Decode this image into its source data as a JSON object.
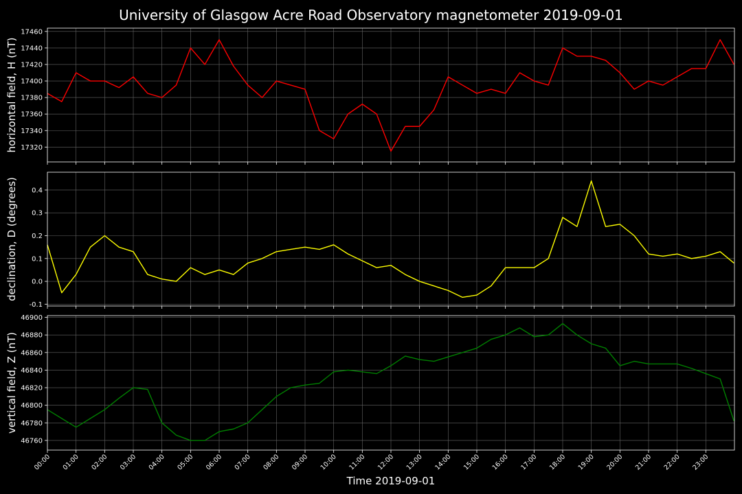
{
  "title": "University of Glasgow Acre Road Observatory magnetometer 2019-09-01",
  "chart_data": [
    {
      "type": "line",
      "ylabel": "horizontal field, H (nT)",
      "color": "#ff0000",
      "grid": true,
      "xlim": [
        "00:00",
        "24:00"
      ],
      "ylim": [
        17302,
        17464
      ],
      "yticks": [
        17320,
        17340,
        17360,
        17380,
        17400,
        17420,
        17440,
        17460
      ],
      "x": [
        "00:00",
        "00:30",
        "01:00",
        "01:30",
        "02:00",
        "02:30",
        "03:00",
        "03:30",
        "04:00",
        "04:30",
        "05:00",
        "05:30",
        "06:00",
        "06:30",
        "07:00",
        "07:30",
        "08:00",
        "08:30",
        "09:00",
        "09:30",
        "10:00",
        "10:30",
        "11:00",
        "11:30",
        "12:00",
        "12:30",
        "13:00",
        "13:30",
        "14:00",
        "14:30",
        "15:00",
        "15:30",
        "16:00",
        "16:30",
        "17:00",
        "17:30",
        "18:00",
        "18:30",
        "19:00",
        "19:30",
        "20:00",
        "20:30",
        "21:00",
        "21:30",
        "22:00",
        "22:30",
        "23:00",
        "23:30",
        "23:59"
      ],
      "values": [
        17385,
        17375,
        17410,
        17400,
        17400,
        17392,
        17405,
        17385,
        17380,
        17395,
        17440,
        17420,
        17450,
        17418,
        17395,
        17380,
        17400,
        17395,
        17390,
        17340,
        17330,
        17360,
        17372,
        17360,
        17315,
        17345,
        17345,
        17365,
        17405,
        17395,
        17385,
        17390,
        17385,
        17410,
        17400,
        17395,
        17440,
        17430,
        17430,
        17425,
        17410,
        17390,
        17400,
        17395,
        17405,
        17415,
        17415,
        17450,
        17420
      ]
    },
    {
      "type": "line",
      "ylabel": "declination, D (degrees)",
      "color": "#ffff00",
      "grid": true,
      "xlim": [
        "00:00",
        "24:00"
      ],
      "ylim": [
        -0.108,
        0.478
      ],
      "yticks": [
        -0.1,
        {
          "value": 0,
          "label": "0.0"
        },
        0.1,
        0.2,
        0.3,
        0.4
      ],
      "x": [
        "00:00",
        "00:30",
        "01:00",
        "01:30",
        "02:00",
        "02:30",
        "03:00",
        "03:30",
        "04:00",
        "04:30",
        "05:00",
        "05:30",
        "06:00",
        "06:30",
        "07:00",
        "07:30",
        "08:00",
        "08:30",
        "09:00",
        "09:30",
        "10:00",
        "10:30",
        "11:00",
        "11:30",
        "12:00",
        "12:30",
        "13:00",
        "13:30",
        "14:00",
        "14:30",
        "15:00",
        "15:30",
        "16:00",
        "16:30",
        "17:00",
        "17:30",
        "18:00",
        "18:30",
        "19:00",
        "19:30",
        "20:00",
        "20:30",
        "21:00",
        "21:30",
        "22:00",
        "22:30",
        "23:00",
        "23:30",
        "23:59"
      ],
      "values": [
        0.16,
        -0.05,
        0.03,
        0.15,
        0.2,
        0.15,
        0.13,
        0.03,
        0.01,
        0.0,
        0.06,
        0.03,
        0.05,
        0.03,
        0.08,
        0.1,
        0.13,
        0.14,
        0.15,
        0.14,
        0.16,
        0.12,
        0.09,
        0.06,
        0.07,
        0.03,
        0.0,
        -0.02,
        -0.04,
        -0.07,
        -0.06,
        -0.02,
        0.06,
        0.06,
        0.06,
        0.1,
        0.28,
        0.24,
        0.44,
        0.24,
        0.25,
        0.2,
        0.12,
        0.11,
        0.12,
        0.1,
        0.11,
        0.13,
        0.08
      ]
    },
    {
      "type": "line",
      "ylabel": "vertical field, Z (nT)",
      "xlabel": "Time 2019-09-01",
      "color": "#008000",
      "grid": true,
      "xlim": [
        "00:00",
        "24:00"
      ],
      "ylim": [
        46749,
        46902
      ],
      "yticks": [
        46760,
        46780,
        46800,
        46820,
        46840,
        46860,
        46880,
        46900
      ],
      "xticks": [
        "00:00",
        "01:00",
        "02:00",
        "03:00",
        "04:00",
        "05:00",
        "06:00",
        "07:00",
        "08:00",
        "09:00",
        "10:00",
        "11:00",
        "12:00",
        "13:00",
        "14:00",
        "15:00",
        "16:00",
        "17:00",
        "18:00",
        "19:00",
        "20:00",
        "21:00",
        "22:00",
        "23:00"
      ],
      "x": [
        "00:00",
        "00:30",
        "01:00",
        "01:30",
        "02:00",
        "02:30",
        "03:00",
        "03:30",
        "04:00",
        "04:30",
        "05:00",
        "05:30",
        "06:00",
        "06:30",
        "07:00",
        "07:30",
        "08:00",
        "08:30",
        "09:00",
        "09:30",
        "10:00",
        "10:30",
        "11:00",
        "11:30",
        "12:00",
        "12:30",
        "13:00",
        "13:30",
        "14:00",
        "14:30",
        "15:00",
        "15:30",
        "16:00",
        "16:30",
        "17:00",
        "17:30",
        "18:00",
        "18:30",
        "19:00",
        "19:30",
        "20:00",
        "20:30",
        "21:00",
        "21:30",
        "22:00",
        "22:30",
        "23:00",
        "23:30",
        "23:59"
      ],
      "values": [
        46795,
        46785,
        46775,
        46785,
        46795,
        46808,
        46820,
        46818,
        46780,
        46766,
        46760,
        46760,
        46770,
        46773,
        46780,
        46795,
        46810,
        46820,
        46823,
        46825,
        46838,
        46840,
        46838,
        46836,
        46845,
        46856,
        46852,
        46850,
        46855,
        46860,
        46865,
        46875,
        46880,
        46888,
        46878,
        46880,
        46893,
        46880,
        46870,
        46865,
        46845,
        46850,
        46847,
        46847,
        46847,
        46842,
        46836,
        46830,
        46782
      ]
    }
  ]
}
